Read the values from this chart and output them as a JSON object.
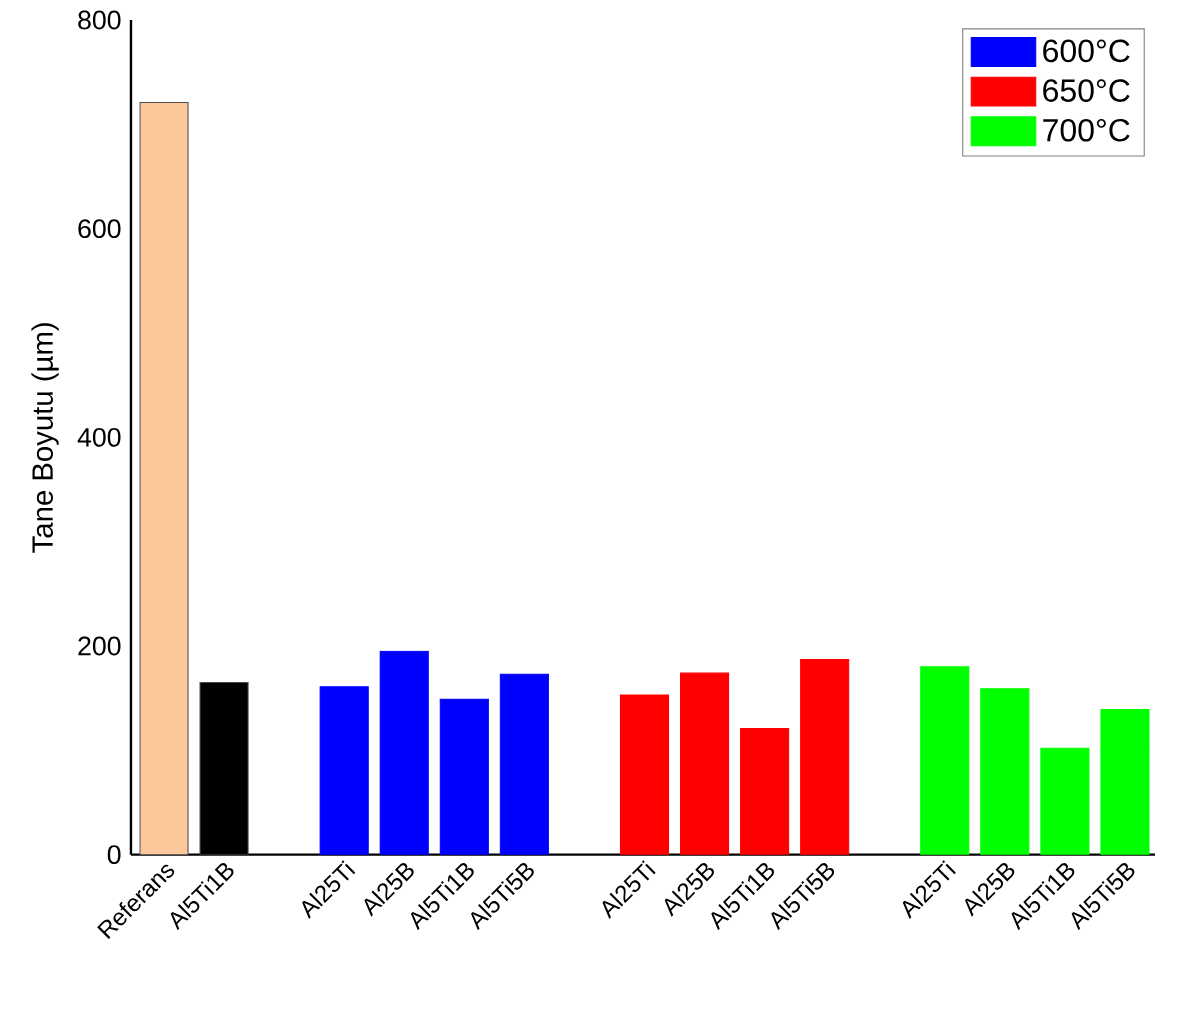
{
  "chart_data": {
    "type": "bar",
    "ylabel": "Tane Boyutu (µm)",
    "categories": [
      "Referans",
      "Al5Ti1B",
      null,
      "Al25Ti",
      "Al25B",
      "Al5Ti1B",
      "Al5Ti5B",
      null,
      "Al25Ti",
      "Al25B",
      "Al5Ti1B",
      "Al5Ti5B",
      null,
      "Al25Ti",
      "Al25B",
      "Al5Ti1B",
      "Al5Ti5B"
    ],
    "series": [
      {
        "colors": [
          "#fbc89b",
          "#000000",
          null,
          null,
          null,
          null,
          null,
          null,
          null,
          null,
          null,
          null,
          null,
          null,
          null,
          null,
          null
        ],
        "values": [
          721,
          165,
          null,
          null,
          null,
          null,
          null,
          null,
          null,
          null,
          null,
          null,
          null,
          null,
          null,
          null,
          null
        ]
      },
      {
        "name": "600°C",
        "color": "#0000ff",
        "values": [
          null,
          null,
          null,
          161,
          195,
          149,
          173,
          null,
          null,
          null,
          null,
          null,
          null,
          null,
          null,
          null,
          null
        ]
      },
      {
        "name": "650°C",
        "color": "#ff0000",
        "values": [
          null,
          null,
          null,
          null,
          null,
          null,
          null,
          null,
          153,
          174,
          121,
          187,
          null,
          null,
          null,
          null,
          null
        ]
      },
      {
        "name": "700°C",
        "color": "#00ff00",
        "values": [
          null,
          null,
          null,
          null,
          null,
          null,
          null,
          null,
          null,
          null,
          null,
          null,
          null,
          180,
          159,
          102,
          139
        ]
      }
    ],
    "ylim": [
      0,
      800
    ],
    "yticks": [
      0,
      200,
      400,
      600,
      800
    ],
    "legend": "top right"
  }
}
